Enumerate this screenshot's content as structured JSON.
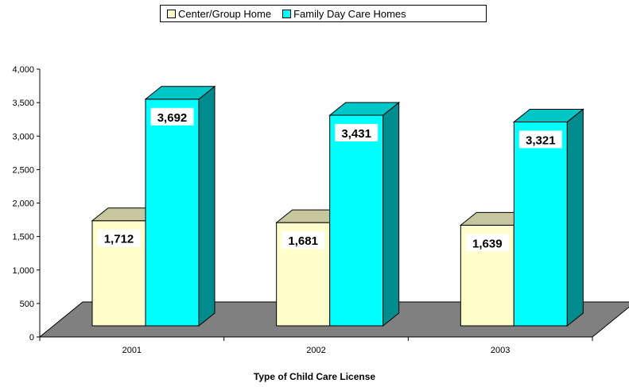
{
  "legend": {
    "series_a": "Center/Group Home",
    "series_b": "Family Day Care Homes"
  },
  "chart_data": {
    "type": "bar",
    "categories": [
      "2001",
      "2002",
      "2003"
    ],
    "series": [
      {
        "name": "Center/Group Home",
        "values": [
          1712,
          1681,
          1639
        ],
        "color": "#FFFFCC"
      },
      {
        "name": "Family Day Care Homes",
        "values": [
          3692,
          3431,
          3321
        ],
        "color": "#00FFFF"
      }
    ],
    "data_labels": [
      [
        "1,712",
        "1,681",
        "1,639"
      ],
      [
        "3,692",
        "3,431",
        "3,321"
      ]
    ],
    "xlabel": "Type of Child Care License",
    "ylabel": "",
    "ylim": [
      0,
      4000
    ],
    "yticks": [
      0,
      500,
      1000,
      1500,
      2000,
      2500,
      3000,
      3500,
      4000
    ],
    "ytick_labels": [
      "0",
      "500",
      "1,000",
      "1,500",
      "2,000",
      "2,500",
      "3,000",
      "3,500",
      "4,000"
    ],
    "floor_color": "#808080",
    "style": "3d-clustered-bar",
    "grid": false,
    "legend_position": "top"
  }
}
